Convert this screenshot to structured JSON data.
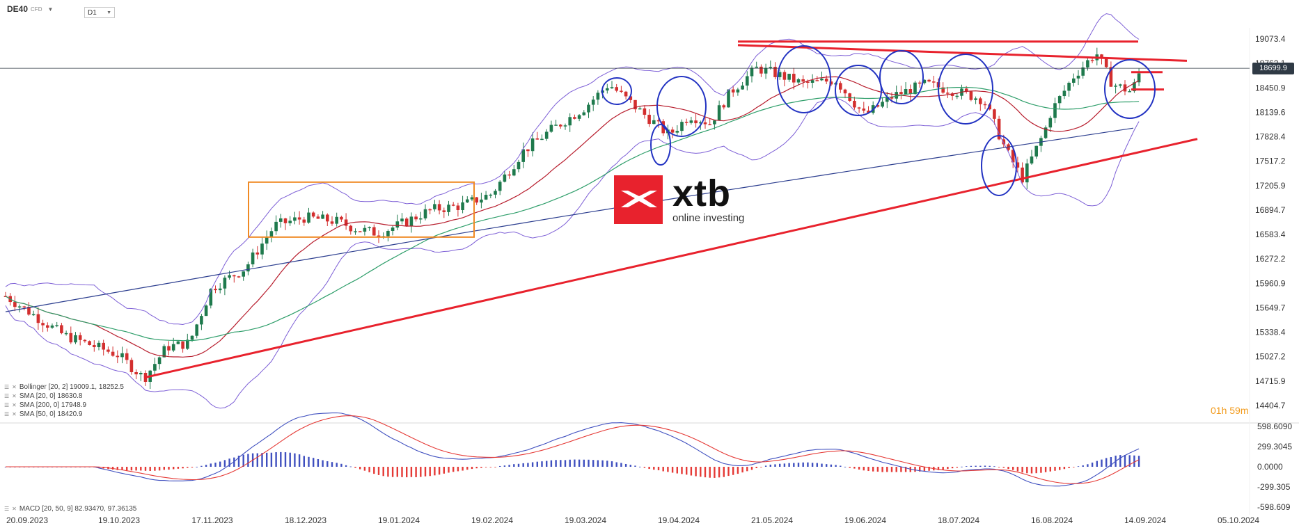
{
  "header": {
    "symbol": "DE40",
    "symbol_sub": "CFD",
    "timeframe": "D1"
  },
  "indicators": {
    "bollinger": "Bollinger [20, 2] 19009.1, 18252.5",
    "sma20": "SMA [20, 0] 18630.8",
    "sma200": "SMA [200, 0] 17948.9",
    "sma50": "SMA [50, 0] 18420.9",
    "macd": "MACD [20, 50, 9] 82.93470, 97.36135"
  },
  "countdown": {
    "h": "01",
    "h_unit": "h",
    "m": "59",
    "m_unit": "m"
  },
  "current_price": "18699.9",
  "logo": {
    "name": "xtb",
    "tagline": "online investing"
  },
  "colors": {
    "up": "#1f7a4d",
    "down": "#d32f2f",
    "sma20": "#b71c2c",
    "sma50": "#2e9e6a",
    "sma200": "#2c3e8f",
    "bollinger": "#7d5fd6",
    "annot_red": "#e8222d",
    "annot_orange": "#f08a24",
    "annot_blue": "#2333c2",
    "macd_line": "#3f4fbf",
    "signal_line": "#e53935"
  },
  "chart_data": {
    "type": "candlestick",
    "ylim": [
      14404.7,
      19073.4
    ],
    "y_ticks": [
      "19073.4",
      "18762.1",
      "18450.9",
      "18139.6",
      "17828.4",
      "17517.2",
      "17205.9",
      "16894.7",
      "16583.4",
      "16272.2",
      "15960.9",
      "15649.7",
      "15338.4",
      "15027.2",
      "14715.9",
      "14404.7"
    ],
    "x_ticks": [
      "20.09.2023",
      "19.10.2023",
      "17.11.2023",
      "18.12.2023",
      "19.01.2024",
      "19.02.2024",
      "19.03.2024",
      "19.04.2024",
      "21.05.2024",
      "19.06.2024",
      "18.07.2024",
      "16.08.2024",
      "14.09.2024",
      "05.10.2024"
    ],
    "close_path": [
      [
        "20.09.2023",
        15800
      ],
      [
        "05.10.2023",
        15300
      ],
      [
        "19.10.2023",
        15050
      ],
      [
        "27.10.2023",
        14750
      ],
      [
        "03.11.2023",
        15150
      ],
      [
        "10.11.2023",
        15200
      ],
      [
        "17.11.2023",
        15900
      ],
      [
        "28.11.2023",
        16150
      ],
      [
        "08.12.2023",
        16700
      ],
      [
        "18.12.2023",
        16800
      ],
      [
        "29.12.2023",
        16750
      ],
      [
        "05.01.2024",
        16650
      ],
      [
        "12.01.2024",
        16600
      ],
      [
        "19.01.2024",
        16700
      ],
      [
        "30.01.2024",
        16900
      ],
      [
        "09.02.2024",
        16950
      ],
      [
        "19.02.2024",
        17100
      ],
      [
        "29.02.2024",
        17650
      ],
      [
        "08.03.2024",
        17900
      ],
      [
        "19.03.2024",
        18200
      ],
      [
        "27.03.2024",
        18500
      ],
      [
        "05.04.2024",
        18200
      ],
      [
        "16.04.2024",
        17850
      ],
      [
        "23.04.2024",
        18100
      ],
      [
        "30.04.2024",
        18000
      ],
      [
        "07.05.2024",
        18400
      ],
      [
        "16.05.2024",
        18700
      ],
      [
        "21.05.2024",
        18650
      ],
      [
        "31.05.2024",
        18500
      ],
      [
        "10.06.2024",
        18550
      ],
      [
        "19.06.2024",
        18100
      ],
      [
        "28.06.2024",
        18350
      ],
      [
        "08.07.2024",
        18500
      ],
      [
        "18.07.2024",
        18400
      ],
      [
        "26.07.2024",
        18300
      ],
      [
        "02.08.2024",
        17650
      ],
      [
        "07.08.2024",
        17300
      ],
      [
        "14.08.2024",
        17900
      ],
      [
        "16.08.2024",
        18150
      ],
      [
        "23.08.2024",
        18600
      ],
      [
        "30.08.2024",
        18900
      ],
      [
        "04.09.2024",
        18500
      ],
      [
        "10.09.2024",
        18400
      ],
      [
        "13.09.2024",
        18699.9
      ]
    ],
    "series": [
      {
        "name": "SMA [20, 0]",
        "last": 18630.8
      },
      {
        "name": "SMA [50, 0]",
        "last": 18420.9
      },
      {
        "name": "SMA [200, 0]",
        "last": 17948.9
      },
      {
        "name": "Bollinger [20, 2]",
        "upper": 19009.1,
        "lower": 18252.5
      }
    ],
    "macd": {
      "ylim": [
        -598.609,
        598.609
      ],
      "y_ticks": [
        "598.6090",
        "299.3045",
        "0.0000",
        "-299.305",
        "-598.609"
      ],
      "macd": 82.9347,
      "signal": 97.36135
    }
  }
}
